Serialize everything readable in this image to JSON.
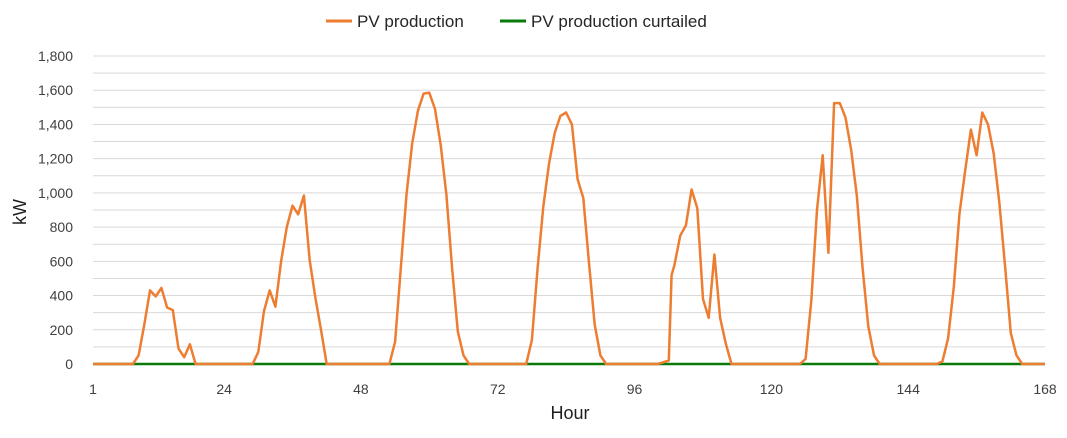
{
  "chart_data": {
    "type": "line",
    "title": "",
    "xlabel": "Hour",
    "ylabel": "kW",
    "xlim": [
      1,
      168
    ],
    "ylim": [
      0,
      1800
    ],
    "x_ticks": [
      1,
      24,
      48,
      72,
      96,
      120,
      144,
      168
    ],
    "x_tick_labels": [
      "1",
      "24",
      "48",
      "72",
      "96",
      "120",
      "144",
      "168"
    ],
    "y_ticks": [
      0,
      200,
      400,
      600,
      800,
      1000,
      1200,
      1400,
      1600,
      1800
    ],
    "y_tick_labels": [
      "0",
      "200",
      "400",
      "600",
      "800",
      "1,000",
      "1,200",
      "1,400",
      "1,600",
      "1,800"
    ],
    "grid": true,
    "legend_position": "top",
    "series": [
      {
        "name": "PV production",
        "color": "#ED7D31",
        "points": [
          [
            1,
            0
          ],
          [
            8,
            0
          ],
          [
            9,
            50
          ],
          [
            10,
            230
          ],
          [
            11,
            430
          ],
          [
            12,
            395
          ],
          [
            13,
            445
          ],
          [
            14,
            330
          ],
          [
            15,
            315
          ],
          [
            16,
            90
          ],
          [
            17,
            40
          ],
          [
            18,
            115
          ],
          [
            19,
            0
          ],
          [
            29,
            0
          ],
          [
            30,
            70
          ],
          [
            31,
            310
          ],
          [
            32,
            430
          ],
          [
            33,
            335
          ],
          [
            34,
            600
          ],
          [
            35,
            800
          ],
          [
            36,
            925
          ],
          [
            37,
            875
          ],
          [
            38,
            985
          ],
          [
            39,
            610
          ],
          [
            40,
            390
          ],
          [
            41,
            200
          ],
          [
            42,
            0
          ],
          [
            53,
            0
          ],
          [
            54,
            130
          ],
          [
            55,
            560
          ],
          [
            56,
            990
          ],
          [
            57,
            1290
          ],
          [
            58,
            1480
          ],
          [
            59,
            1580
          ],
          [
            60,
            1585
          ],
          [
            61,
            1490
          ],
          [
            62,
            1280
          ],
          [
            63,
            990
          ],
          [
            64,
            560
          ],
          [
            65,
            190
          ],
          [
            66,
            50
          ],
          [
            67,
            0
          ],
          [
            77,
            0
          ],
          [
            78,
            140
          ],
          [
            79,
            560
          ],
          [
            80,
            920
          ],
          [
            81,
            1170
          ],
          [
            82,
            1350
          ],
          [
            83,
            1450
          ],
          [
            84,
            1470
          ],
          [
            85,
            1400
          ],
          [
            86,
            1080
          ],
          [
            87,
            970
          ],
          [
            88,
            590
          ],
          [
            89,
            230
          ],
          [
            90,
            50
          ],
          [
            91,
            0
          ],
          [
            100,
            0
          ],
          [
            101,
            10
          ],
          [
            102,
            20
          ],
          [
            102.5,
            520
          ],
          [
            103,
            580
          ],
          [
            104,
            750
          ],
          [
            105,
            810
          ],
          [
            106,
            1020
          ],
          [
            107,
            910
          ],
          [
            108,
            380
          ],
          [
            109,
            270
          ],
          [
            110,
            640
          ],
          [
            111,
            270
          ],
          [
            112,
            120
          ],
          [
            113,
            0
          ],
          [
            125,
            0
          ],
          [
            126,
            30
          ],
          [
            127,
            370
          ],
          [
            128,
            900
          ],
          [
            129,
            1220
          ],
          [
            130,
            650
          ],
          [
            131,
            1525
          ],
          [
            132,
            1525
          ],
          [
            133,
            1440
          ],
          [
            134,
            1250
          ],
          [
            135,
            980
          ],
          [
            136,
            560
          ],
          [
            137,
            220
          ],
          [
            138,
            50
          ],
          [
            139,
            0
          ],
          [
            149,
            0
          ],
          [
            150,
            15
          ],
          [
            151,
            150
          ],
          [
            152,
            450
          ],
          [
            153,
            880
          ],
          [
            154,
            1130
          ],
          [
            155,
            1370
          ],
          [
            156,
            1220
          ],
          [
            157,
            1470
          ],
          [
            158,
            1400
          ],
          [
            159,
            1230
          ],
          [
            160,
            940
          ],
          [
            161,
            570
          ],
          [
            162,
            180
          ],
          [
            163,
            50
          ],
          [
            164,
            0
          ],
          [
            168,
            0
          ]
        ]
      },
      {
        "name": "PV production curtailed",
        "color": "#0A7A0A",
        "points": [
          [
            1,
            0
          ],
          [
            168,
            0
          ]
        ]
      }
    ]
  }
}
